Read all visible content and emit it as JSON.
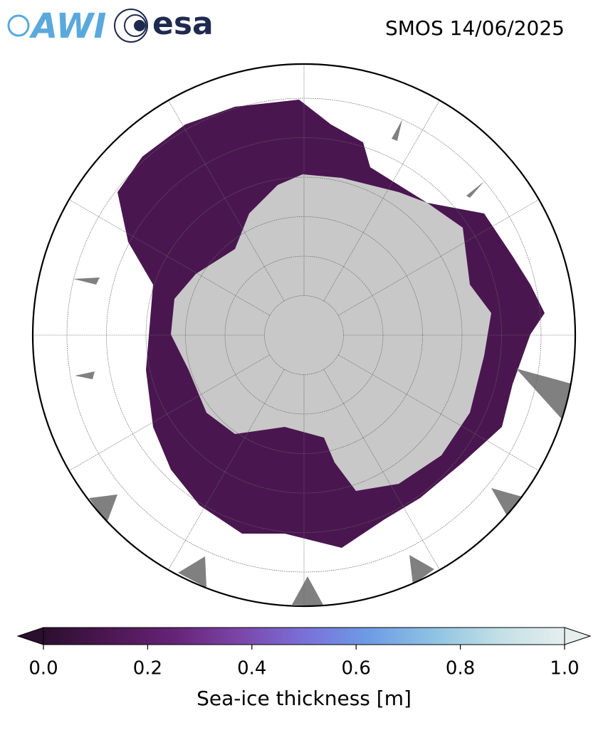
{
  "header": {
    "logos": [
      "AWI",
      "esa"
    ],
    "title": "SMOS 14/06/2025"
  },
  "colorbar": {
    "label": "Sea-ice thickness [m]",
    "lim": [
      0,
      1
    ],
    "ticks": [
      {
        "value": 0,
        "label": "0.0"
      },
      {
        "value": 0.2,
        "label": "0.2"
      },
      {
        "value": 0.4,
        "label": "0.4"
      },
      {
        "value": 0.6,
        "label": "0.6"
      },
      {
        "value": 0.8,
        "label": "0.8"
      },
      {
        "value": 1,
        "label": "1.0"
      }
    ],
    "colors": [
      "#2b0f2e",
      "#4c1752",
      "#652376",
      "#7b45a8",
      "#7a70d8",
      "#6d9ce6",
      "#8fc3e3",
      "#c2e0e6",
      "#e6eeee"
    ]
  }
}
